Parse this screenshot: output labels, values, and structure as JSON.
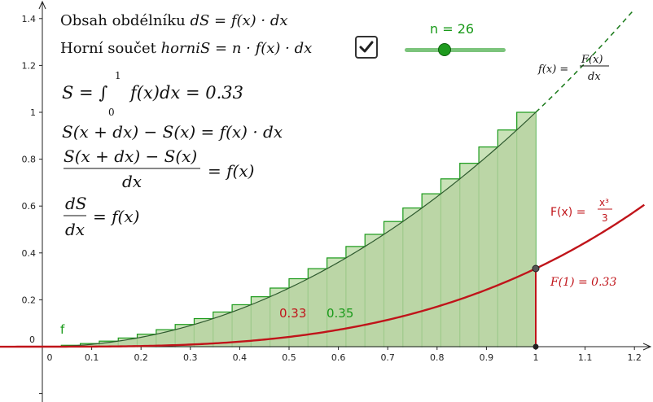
{
  "formulas": {
    "line1_text": "Obsah obdélníku ",
    "line1_math": "dS = f(x) · dx",
    "line2_text": "Horní součet ",
    "line2_math": "horniS = n · f(x) · dx",
    "line3": "S = ∫",
    "line3_rest": "f(x)dx = 0.33",
    "line3_upper": "1",
    "line3_lower": "0",
    "line4": "S(x + dx) − S(x) = f(x) · dx",
    "line5_num": "S(x + dx) − S(x)",
    "line5_den": "dx",
    "line5_rhs": "= f(x)",
    "line6_num": "dS",
    "line6_den": "dx",
    "line6_rhs": "= f(x)"
  },
  "checkbox": {
    "checked": true
  },
  "slider": {
    "label": "n = 26",
    "value": 26,
    "min": 1,
    "max": 60
  },
  "labels": {
    "f_def_lhs": "f(x) =",
    "f_def_num": "F(x)",
    "f_def_den": "dx",
    "F_def_lhs": "F(x) =",
    "F_def_num": "x³",
    "F_def_den": "3",
    "F1": "F(1) = 0.33",
    "area_red": "0.33",
    "area_green": "0.35",
    "f_name": "f"
  },
  "colors": {
    "green": "#1a9a1a",
    "green_fill": "#b9d3a2",
    "red": "#c0141a",
    "axis": "#222222"
  },
  "chart_data": {
    "type": "area",
    "n": 26,
    "interval": [
      0,
      1
    ],
    "xlim": [
      -0.1,
      1.22
    ],
    "ylim": [
      -0.25,
      1.45
    ],
    "x_ticks": [
      0,
      0.1,
      0.2,
      0.3,
      0.4,
      0.5,
      0.6,
      0.7,
      0.8,
      0.9,
      1,
      1.1,
      1.2
    ],
    "y_ticks": [
      0.2,
      0.4,
      0.6,
      0.8,
      1,
      1.2,
      1.4
    ],
    "y_zero_label": "0",
    "x_zero_label": "0",
    "series": [
      {
        "name": "f",
        "expression": "x^2"
      },
      {
        "name": "F",
        "expression": "x^3/3"
      }
    ],
    "F_at_1": 0.33,
    "integral": 0.33,
    "upper_sum": 0.35
  }
}
